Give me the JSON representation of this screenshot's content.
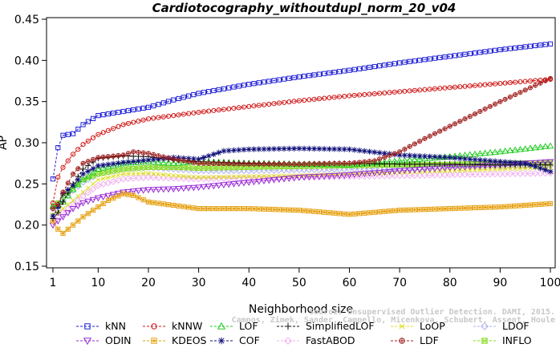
{
  "chart_data": {
    "type": "line",
    "title": "Cardiotocography_withoutdupl_norm_20_v04",
    "xlabel": "Neighborhood size",
    "ylabel": "AP",
    "xlim": [
      1,
      100
    ],
    "ylim": [
      0.15,
      0.45
    ],
    "xticks": [
      "1",
      "10",
      "20",
      "30",
      "40",
      "50",
      "60",
      "70",
      "80",
      "90",
      "100"
    ],
    "yticks": [
      "0.15",
      "0.20",
      "0.25",
      "0.30",
      "0.35",
      "0.40",
      "0.45"
    ],
    "credit": {
      "line1": "Source: Unsupervised Outlier Detection. DAMI, 2015.",
      "line2": "Campos, Zimek, Sander, Campello, Micenkova, Schubert, Assent, Houle"
    },
    "legend_rows": [
      [
        "kNN",
        "kNNW",
        "LOF",
        "SimplifiedLOF",
        "LoOP",
        "LDOF"
      ],
      [
        "ODIN",
        "KDEOS",
        "COF",
        "FastABOD",
        "LDF",
        "INFLO"
      ]
    ],
    "series": [
      {
        "name": "kNN",
        "color": "#1f1fd6",
        "marker": "square",
        "x": [
          1,
          2,
          3,
          5,
          7,
          10,
          15,
          20,
          25,
          30,
          40,
          50,
          60,
          70,
          80,
          90,
          100
        ],
        "y": [
          0.256,
          0.294,
          0.309,
          0.311,
          0.322,
          0.333,
          0.338,
          0.343,
          0.352,
          0.36,
          0.371,
          0.38,
          0.388,
          0.397,
          0.405,
          0.413,
          0.42
        ]
      },
      {
        "name": "kNNW",
        "color": "#d01414",
        "marker": "circle",
        "x": [
          1,
          2,
          3,
          5,
          7,
          10,
          15,
          20,
          25,
          30,
          40,
          50,
          60,
          70,
          80,
          90,
          100
        ],
        "y": [
          0.227,
          0.258,
          0.27,
          0.286,
          0.298,
          0.31,
          0.322,
          0.329,
          0.333,
          0.337,
          0.344,
          0.351,
          0.357,
          0.362,
          0.367,
          0.372,
          0.377
        ]
      },
      {
        "name": "LOF",
        "color": "#22cc22",
        "marker": "triangle",
        "x": [
          1,
          2,
          3,
          5,
          7,
          10,
          15,
          20,
          25,
          30,
          40,
          50,
          60,
          70,
          80,
          90,
          100
        ],
        "y": [
          0.223,
          0.225,
          0.228,
          0.243,
          0.255,
          0.268,
          0.275,
          0.277,
          0.275,
          0.277,
          0.275,
          0.274,
          0.273,
          0.278,
          0.283,
          0.289,
          0.296
        ]
      },
      {
        "name": "SimplifiedLOF",
        "color": "#111111",
        "marker": "plus",
        "x": [
          1,
          2,
          3,
          5,
          7,
          10,
          15,
          20,
          25,
          30,
          40,
          50,
          60,
          70,
          80,
          90,
          100
        ],
        "y": [
          0.208,
          0.215,
          0.228,
          0.25,
          0.268,
          0.281,
          0.284,
          0.283,
          0.279,
          0.277,
          0.275,
          0.274,
          0.275,
          0.274,
          0.274,
          0.273,
          0.273
        ]
      },
      {
        "name": "LoOP",
        "color": "#dddd22",
        "marker": "x",
        "x": [
          1,
          2,
          3,
          5,
          7,
          10,
          15,
          20,
          25,
          30,
          40,
          50,
          60,
          70,
          80,
          90,
          100
        ],
        "y": [
          0.213,
          0.215,
          0.22,
          0.23,
          0.24,
          0.255,
          0.262,
          0.263,
          0.26,
          0.258,
          0.259,
          0.26,
          0.262,
          0.264,
          0.266,
          0.268,
          0.27
        ]
      },
      {
        "name": "LDOF",
        "color": "#b0b0f0",
        "marker": "diamond",
        "x": [
          1,
          2,
          3,
          5,
          7,
          10,
          15,
          20,
          25,
          30,
          40,
          50,
          60,
          70,
          80,
          90,
          100
        ],
        "y": [
          0.22,
          0.223,
          0.23,
          0.242,
          0.252,
          0.262,
          0.268,
          0.27,
          0.268,
          0.266,
          0.266,
          0.267,
          0.268,
          0.269,
          0.27,
          0.271,
          0.272
        ]
      },
      {
        "name": "ODIN",
        "color": "#9a2cd6",
        "marker": "triangle-down",
        "x": [
          1,
          2,
          3,
          5,
          7,
          10,
          15,
          20,
          25,
          30,
          40,
          50,
          60,
          70,
          80,
          90,
          100
        ],
        "y": [
          0.2,
          0.205,
          0.21,
          0.22,
          0.227,
          0.233,
          0.24,
          0.243,
          0.244,
          0.246,
          0.252,
          0.258,
          0.261,
          0.266,
          0.27,
          0.273,
          0.277
        ]
      },
      {
        "name": "KDEOS",
        "color": "#e6a010",
        "marker": "boxsquare",
        "x": [
          1,
          2,
          3,
          5,
          7,
          10,
          12,
          15,
          17,
          20,
          25,
          30,
          40,
          50,
          60,
          70,
          80,
          90,
          100
        ],
        "y": [
          0.205,
          0.195,
          0.19,
          0.2,
          0.21,
          0.222,
          0.23,
          0.238,
          0.236,
          0.228,
          0.224,
          0.22,
          0.22,
          0.218,
          0.213,
          0.218,
          0.22,
          0.222,
          0.226
        ]
      },
      {
        "name": "COF",
        "color": "#10107a",
        "marker": "star",
        "x": [
          1,
          2,
          3,
          5,
          7,
          10,
          15,
          20,
          25,
          30,
          35,
          40,
          50,
          60,
          70,
          80,
          90,
          95,
          100
        ],
        "y": [
          0.211,
          0.222,
          0.238,
          0.248,
          0.262,
          0.272,
          0.276,
          0.279,
          0.282,
          0.28,
          0.29,
          0.292,
          0.293,
          0.292,
          0.285,
          0.282,
          0.277,
          0.275,
          0.265
        ]
      },
      {
        "name": "FastABOD",
        "color": "#f0b0f0",
        "marker": "diamond",
        "x": [
          1,
          2,
          3,
          5,
          7,
          10,
          15,
          20,
          25,
          30,
          40,
          50,
          60,
          70,
          80,
          90,
          100
        ],
        "y": [
          0.205,
          0.21,
          0.215,
          0.225,
          0.235,
          0.248,
          0.256,
          0.258,
          0.257,
          0.256,
          0.257,
          0.258,
          0.259,
          0.26,
          0.261,
          0.262,
          0.263
        ]
      },
      {
        "name": "LDF",
        "color": "#a02020",
        "marker": "circleplus",
        "x": [
          1,
          2,
          3,
          5,
          7,
          10,
          15,
          17,
          20,
          25,
          30,
          40,
          50,
          60,
          65,
          70,
          75,
          80,
          90,
          100
        ],
        "y": [
          0.22,
          0.225,
          0.24,
          0.262,
          0.275,
          0.282,
          0.285,
          0.289,
          0.287,
          0.28,
          0.275,
          0.274,
          0.274,
          0.275,
          0.278,
          0.289,
          0.305,
          0.32,
          0.35,
          0.378
        ]
      },
      {
        "name": "INFLO",
        "color": "#88dd22",
        "marker": "xsquare",
        "x": [
          1,
          2,
          3,
          5,
          7,
          10,
          15,
          20,
          25,
          30,
          40,
          50,
          60,
          70,
          80,
          90,
          100
        ],
        "y": [
          0.222,
          0.227,
          0.235,
          0.245,
          0.255,
          0.262,
          0.268,
          0.27,
          0.27,
          0.269,
          0.27,
          0.271,
          0.272,
          0.273,
          0.274,
          0.275,
          0.276
        ]
      }
    ]
  }
}
